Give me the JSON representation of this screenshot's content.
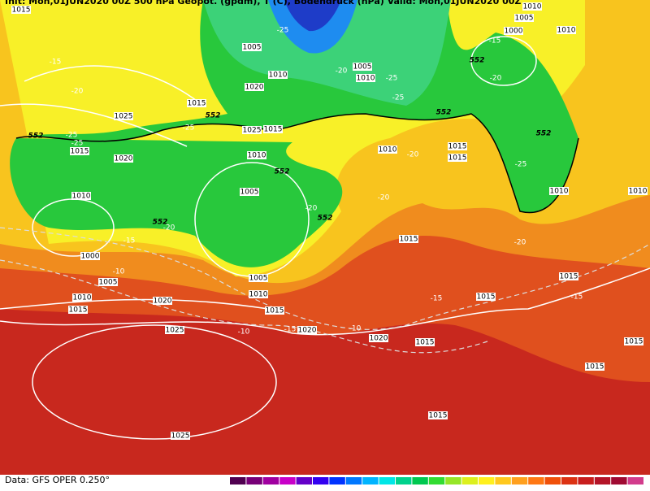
{
  "header": {
    "title": "Init: Mon,01JUN2020 00Z   500 hPa Geopot. (gpdm), T (C), Bodendruck (hPa)   Valid: Mon,01JUN2020 00Z"
  },
  "footer": {
    "source": "Data: GFS OPER 0.250°"
  },
  "isobar_labels": [
    "1015",
    "1005",
    "1000",
    "1010",
    "1010",
    "1005",
    "1005",
    "1010",
    "1010",
    "1020",
    "1015",
    "1025",
    "1025",
    "1015",
    "1015",
    "1020",
    "1010",
    "1010",
    "1015",
    "1015",
    "1010",
    "1005",
    "1010",
    "1000",
    "1005",
    "1010",
    "1015",
    "1005",
    "1010",
    "1020",
    "1015",
    "1020",
    "1025",
    "1015",
    "1015",
    "1015",
    "1020",
    "1015",
    "1015",
    "1015",
    "1025",
    "1010",
    "1015"
  ],
  "temperature_labels": [
    "-15",
    "-20",
    "-25",
    "-25",
    "-25",
    "-25",
    "-20",
    "-25",
    "-25",
    "-20",
    "-20",
    "-20",
    "-15",
    "-20",
    "-10",
    "-15",
    "-10",
    "-15",
    "-10",
    "-20",
    "-15",
    "-25",
    "-20",
    "-15"
  ],
  "geopotential_labels": [
    "552",
    "552",
    "552",
    "552",
    "552",
    "552",
    "552",
    "552"
  ]
}
